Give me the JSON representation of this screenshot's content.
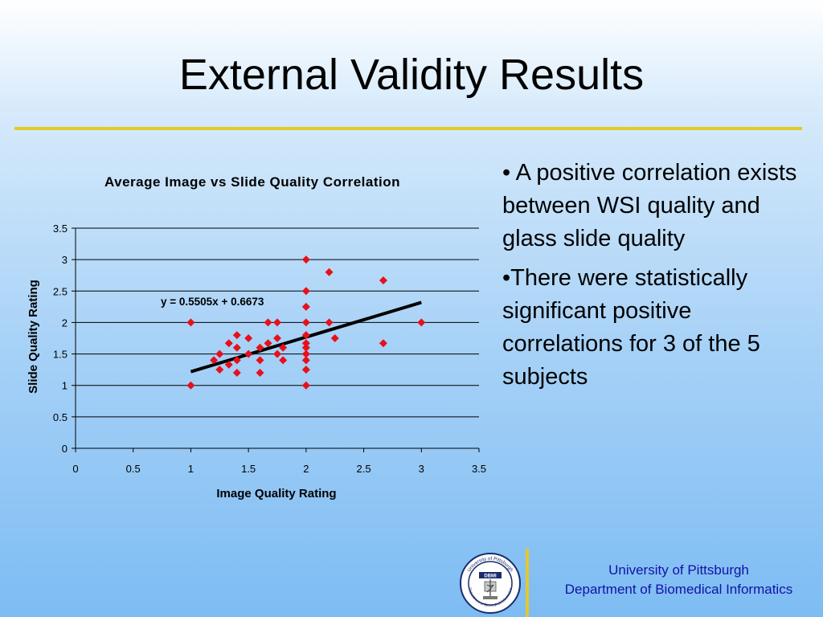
{
  "title": "External Validity Results",
  "bullets": [
    "• A positive correlation exists between WSI quality and glass slide quality",
    "•There were statistically significant positive correlations for 3 of the 5 subjects"
  ],
  "footer": {
    "line1": "University of Pittsburgh",
    "line2": "Department of Biomedical Informatics"
  },
  "logo": {
    "text_top": "University of Pittsburgh",
    "text_bottom": "Department of Biomedical Informatics",
    "abbrev": "DBMI",
    "icon": "caduceus-microscope-seal"
  },
  "colors": {
    "accent_rule": "#e4c92a",
    "marker": "#e8101a",
    "footer_text": "#1212a6"
  },
  "chart_data": {
    "type": "scatter",
    "title": "Average Image vs Slide Quality Correlation",
    "xlabel": "Image Quality Rating",
    "ylabel": "Slide Quality Rating",
    "xlim": [
      0,
      3.5
    ],
    "ylim": [
      0,
      3.5
    ],
    "xticks": [
      "0",
      "0.5",
      "1",
      "1.5",
      "2",
      "2.5",
      "3",
      "3.5"
    ],
    "yticks": [
      "0",
      "0.5",
      "1",
      "1.5",
      "2",
      "2.5",
      "3",
      "3.5"
    ],
    "grid": "horizontal",
    "trendline": {
      "equation": "y = 0.5505x + 0.6673",
      "slope": 0.5505,
      "intercept": 0.6673,
      "x_range": [
        1,
        3
      ]
    },
    "points": [
      [
        1,
        2
      ],
      [
        1,
        1
      ],
      [
        1.2,
        1.4
      ],
      [
        1.25,
        1.5
      ],
      [
        1.25,
        1.25
      ],
      [
        1.33,
        1.67
      ],
      [
        1.33,
        1.33
      ],
      [
        1.4,
        1.8
      ],
      [
        1.4,
        1.6
      ],
      [
        1.4,
        1.4
      ],
      [
        1.4,
        1.2
      ],
      [
        1.5,
        1.75
      ],
      [
        1.5,
        1.5
      ],
      [
        1.6,
        1.6
      ],
      [
        1.6,
        1.4
      ],
      [
        1.6,
        1.2
      ],
      [
        1.67,
        2
      ],
      [
        1.67,
        1.67
      ],
      [
        1.75,
        2
      ],
      [
        1.75,
        1.75
      ],
      [
        1.75,
        1.5
      ],
      [
        1.8,
        1.6
      ],
      [
        1.8,
        1.4
      ],
      [
        2,
        3
      ],
      [
        2,
        2.5
      ],
      [
        2,
        2.25
      ],
      [
        2,
        2
      ],
      [
        2,
        1.8
      ],
      [
        2,
        1.67
      ],
      [
        2,
        1.6
      ],
      [
        2,
        1.5
      ],
      [
        2,
        1.4
      ],
      [
        2,
        1.25
      ],
      [
        2,
        1
      ],
      [
        2.2,
        2.8
      ],
      [
        2.2,
        2
      ],
      [
        2.25,
        1.75
      ],
      [
        2.67,
        2.67
      ],
      [
        2.67,
        1.67
      ],
      [
        3,
        2
      ]
    ]
  }
}
